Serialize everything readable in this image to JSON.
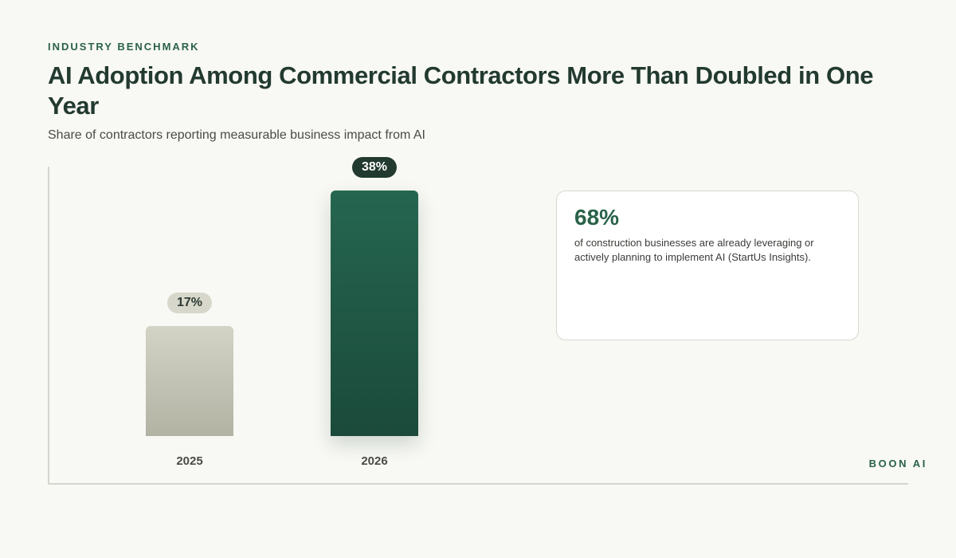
{
  "header": {
    "eyebrow": "INDUSTRY BENCHMARK",
    "title": "AI Adoption Among Commercial Contractors More Than Doubled in One Year",
    "subtitle": "Share of contractors reporting measurable business impact from AI"
  },
  "chart_data": {
    "type": "bar",
    "title": "AI Adoption Among Commercial Contractors More Than Doubled in One Year",
    "subtitle": "Share of contractors reporting measurable business impact from AI",
    "categories": [
      "2025",
      "2026"
    ],
    "values": [
      17,
      38
    ],
    "value_labels": [
      "17%",
      "38%"
    ],
    "unit": "%",
    "bar_colors": [
      "#c6c6b8",
      "#205a46"
    ],
    "ylim": [
      0,
      38
    ],
    "grid": false,
    "xlabel": "",
    "ylabel": ""
  },
  "callout": {
    "stat": "68%",
    "text": "of construction businesses are already leveraging or actively planning to implement AI (StartUs Insights)."
  },
  "brand": {
    "label": "BOON AI"
  },
  "colors": {
    "accent": "#2a6249",
    "title": "#223a30",
    "background": "#f8f8f4"
  }
}
